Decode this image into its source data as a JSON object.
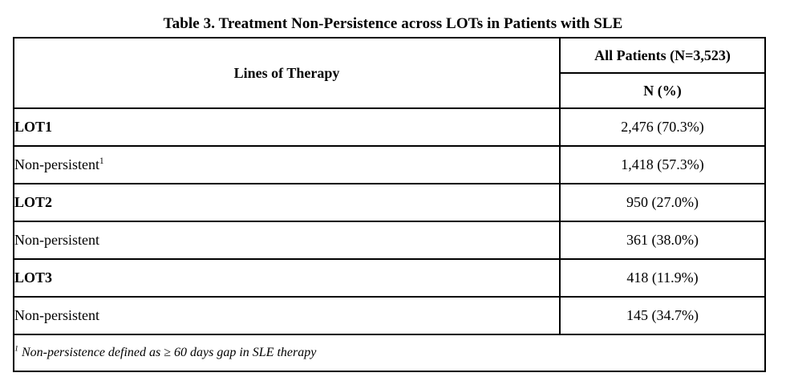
{
  "title": "Table 3. Treatment Non-Persistence across LOTs in Patients with SLE",
  "table": {
    "header": {
      "lines_of_therapy": "Lines of Therapy",
      "all_patients": "All Patients (N=3,523)",
      "n_percent": "N (%)"
    },
    "rows": [
      {
        "label": "LOT1",
        "indent": false,
        "sup": "",
        "value": "2,476 (70.3%)"
      },
      {
        "label": "Non-persistent",
        "indent": true,
        "sup": "1",
        "value": "1,418 (57.3%)"
      },
      {
        "label": "LOT2",
        "indent": false,
        "sup": "",
        "value": "950 (27.0%)"
      },
      {
        "label": "Non-persistent",
        "indent": true,
        "sup": "",
        "value": "361 (38.0%)"
      },
      {
        "label": "LOT3",
        "indent": false,
        "sup": "",
        "value": "418 (11.9%)"
      },
      {
        "label": "Non-persistent",
        "indent": true,
        "sup": "",
        "value": "145 (34.7%)"
      }
    ],
    "footnote": {
      "sup": "1",
      "text": " Non-persistence defined as ≥ 60 days gap in SLE therapy"
    }
  },
  "colors": {
    "text": "#000000",
    "border": "#000000",
    "background": "#ffffff"
  }
}
